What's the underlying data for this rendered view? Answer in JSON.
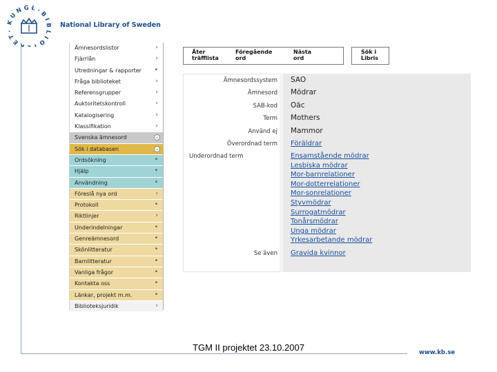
{
  "header": {
    "logo_text": "National Library of Sweden",
    "logo_ring_text": "KUNGL BIBLIOTEKET"
  },
  "sidebar": {
    "items": [
      {
        "label": "Ämnesordslistor",
        "mark": "›",
        "style": "white"
      },
      {
        "label": "Fjärrlån",
        "mark": "›",
        "style": "white"
      },
      {
        "label": "Utredningar & rapporter",
        "mark": "•",
        "style": "white"
      },
      {
        "label": "Fråga biblioteket",
        "mark": "›",
        "style": "white"
      },
      {
        "label": "Referensgrupper",
        "mark": "›",
        "style": "white"
      },
      {
        "label": "Auktoritetskontroll",
        "mark": "›",
        "style": "white"
      },
      {
        "label": "Katalogisering",
        "mark": "›",
        "style": "white"
      },
      {
        "label": "Klassifikation",
        "mark": "›",
        "style": "white"
      },
      {
        "label": "Svenska ämnesord",
        "mark": "⌄",
        "style": "grey"
      },
      {
        "label": "Sök i databasen",
        "mark": "⌄",
        "style": "gold"
      },
      {
        "label": "Ordsökning",
        "mark": "•",
        "style": "teal"
      },
      {
        "label": "Hjälp",
        "mark": "•",
        "style": "teal"
      },
      {
        "label": "Användning",
        "mark": "•",
        "style": "teal"
      },
      {
        "label": "Föreslå nya ord",
        "mark": "›",
        "style": "sand"
      },
      {
        "label": "Protokoll",
        "mark": "•",
        "style": "sand"
      },
      {
        "label": "Riktlinjer",
        "mark": "›",
        "style": "sand"
      },
      {
        "label": "Underindelningar",
        "mark": "•",
        "style": "sand"
      },
      {
        "label": "Genreämnesord",
        "mark": "•",
        "style": "sand"
      },
      {
        "label": "Skönlitteratur",
        "mark": "•",
        "style": "sand"
      },
      {
        "label": "Barnlitteratur",
        "mark": "•",
        "style": "sand"
      },
      {
        "label": "Vanliga frågor",
        "mark": "•",
        "style": "sand"
      },
      {
        "label": "Kontakta oss",
        "mark": "•",
        "style": "sand"
      },
      {
        "label": "Länkar, projekt m.m.",
        "mark": "•",
        "style": "sand"
      },
      {
        "label": "Biblioteksjuridik",
        "mark": "›",
        "style": "light"
      }
    ]
  },
  "toolbar": {
    "back_label": "Åter\nträfflista",
    "prev_label": "Föregående\nord",
    "next_label": "Nästa\nord",
    "libris_label": "Sök i\nLibris"
  },
  "record": {
    "rows": [
      {
        "label": "Ämnesordssystem",
        "values": [
          "SAO"
        ],
        "link": false
      },
      {
        "label": "Ämnesord",
        "values": [
          "Mödrar"
        ],
        "link": false
      },
      {
        "label": "SAB-kod",
        "values": [
          "Oäc"
        ],
        "link": false
      },
      {
        "label": "Term",
        "values": [
          "Mothers"
        ],
        "link": false
      },
      {
        "label": "Använd ej",
        "values": [
          "Mammor"
        ],
        "link": false
      },
      {
        "label": "Överordnad term",
        "values": [
          "Föräldrar"
        ],
        "link": true
      },
      {
        "label": "Underordnad term",
        "values": [
          "Ensamstående mödrar",
          "Lesbiska mödrar",
          "Mor-barnrelationer",
          "Mor-dotterrelationer",
          "Mor-sonrelationer",
          "Styvmödrar",
          "Surrogatmödrar",
          "Tonårsmödrar",
          "Unga mödrar",
          "Yrkesarbetande mödrar"
        ],
        "link": true
      },
      {
        "label": "Se även",
        "values": [
          "Gravida kvinnor"
        ],
        "link": true
      }
    ]
  },
  "footer": {
    "caption": "TGM II projektet  23.10.2007",
    "url": "www.kb.se"
  },
  "colors": {
    "brand": "#1f4e8c",
    "link": "#1a4fa0",
    "gold": "#e0b84a",
    "teal": "#9fd3d6",
    "sand": "#eed9a0",
    "grey": "#c9c9c9"
  }
}
